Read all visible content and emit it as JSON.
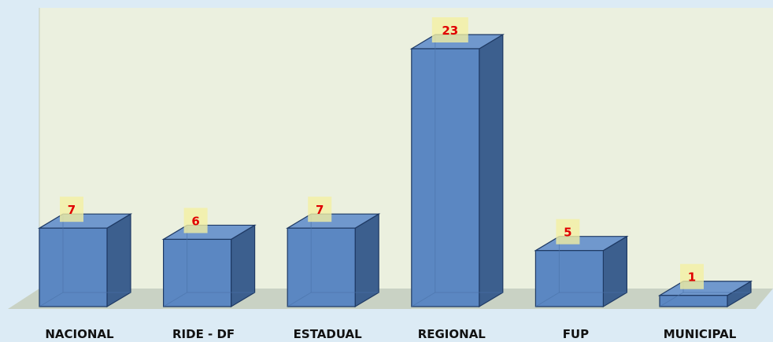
{
  "chart_data": {
    "type": "bar",
    "categories": [
      "NACIONAL",
      "RIDE - DF",
      "ESTADUAL",
      "REGIONAL",
      "FUP",
      "MUNICIPAL"
    ],
    "values": [
      7,
      6,
      7,
      23,
      5,
      1
    ],
    "data_labels": [
      "7",
      "6",
      "7",
      "23",
      "5",
      "1"
    ],
    "title": "",
    "xlabel": "",
    "ylabel": "",
    "ylim": [
      0,
      23
    ],
    "grid": false,
    "legend": "none",
    "style": "3d-column"
  },
  "colors": {
    "background": "#dcebf5",
    "plot_area": "#ebf0df",
    "floor": "#c9d2c4",
    "bar_front": "#5b87c2",
    "bar_side": "#3c5f8e",
    "bar_top": "#7098cd",
    "bar_stroke": "#1f3a64",
    "data_label_box": "#f3f0a2",
    "data_label_text": "#e00000"
  }
}
